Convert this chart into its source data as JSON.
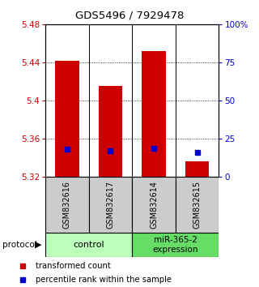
{
  "title": "GDS5496 / 7929478",
  "samples": [
    "GSM832616",
    "GSM832617",
    "GSM832614",
    "GSM832615"
  ],
  "bar_bottoms": [
    5.32,
    5.32,
    5.32,
    5.32
  ],
  "bar_tops": [
    5.442,
    5.415,
    5.452,
    5.336
  ],
  "percentile_values": [
    5.349,
    5.347,
    5.35,
    5.345
  ],
  "bar_color": "#cc0000",
  "percentile_color": "#0000cc",
  "ylim_left": [
    5.32,
    5.48
  ],
  "ylim_right": [
    0,
    100
  ],
  "yticks_left": [
    5.32,
    5.36,
    5.4,
    5.44,
    5.48
  ],
  "yticks_right": [
    0,
    25,
    50,
    75,
    100
  ],
  "ytick_labels_left": [
    "5.32",
    "5.36",
    "5.4",
    "5.44",
    "5.48"
  ],
  "ytick_labels_right": [
    "0",
    "25",
    "50",
    "75",
    "100%"
  ],
  "groups": [
    {
      "label": "control",
      "color": "#bbffbb"
    },
    {
      "label": "miR-365-2\nexpression",
      "color": "#66dd66"
    }
  ],
  "protocol_label": "protocol",
  "legend_red_label": "transformed count",
  "legend_blue_label": "percentile rank within the sample",
  "tick_label_color_left": "#cc0000",
  "tick_label_color_right": "#0000cc",
  "bar_width": 0.55,
  "sample_box_color": "#cccccc"
}
